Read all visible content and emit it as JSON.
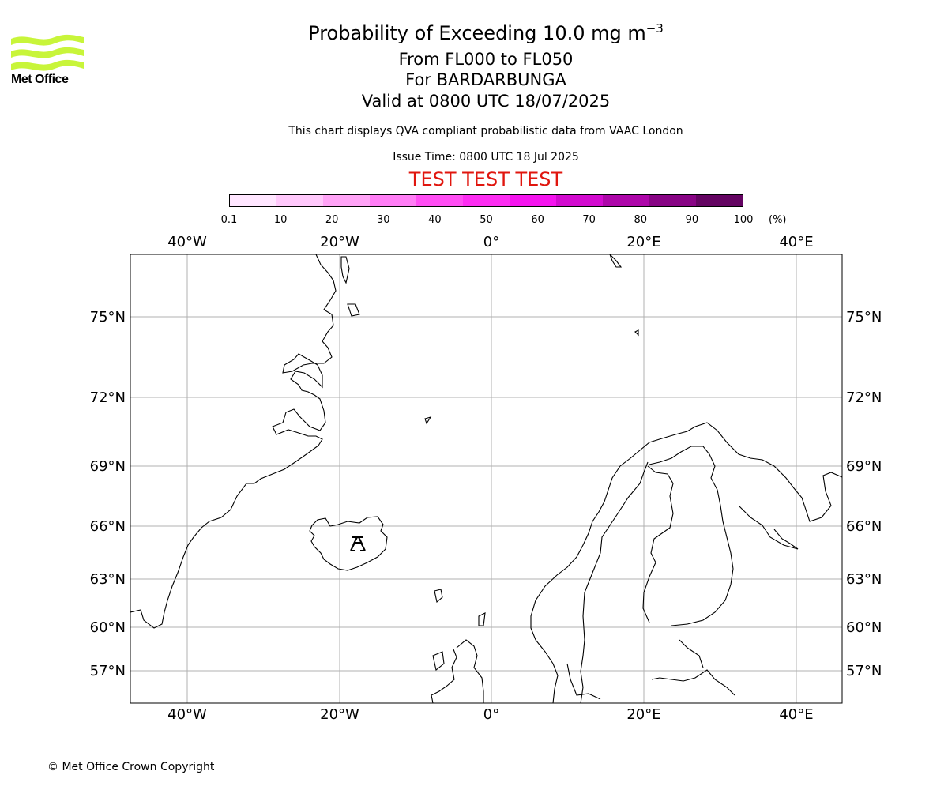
{
  "logo": {
    "text": "Met Office",
    "color": "#c8f53a"
  },
  "title": {
    "main": "Probability of Exceeding 10.0 mg m",
    "superscript": "−3",
    "levels": "From FL000 to FL050",
    "volcano": "For BARDARBUNGA",
    "valid": "Valid at 0800 UTC 18/07/2025"
  },
  "note": "This chart displays QVA compliant probabilistic data from VAAC London",
  "issue_time": "Issue Time: 0800 UTC 18 Jul 2025",
  "test_banner": "TEST TEST TEST",
  "colorbar": {
    "ticks": [
      "0.1",
      "10",
      "20",
      "30",
      "40",
      "50",
      "60",
      "70",
      "80",
      "90",
      "100"
    ],
    "unit": "(%)",
    "colors": [
      "#ffe6ff",
      "#ffc8fb",
      "#ffa3f6",
      "#ff7df5",
      "#ff4df3",
      "#fd2df2",
      "#f514ef",
      "#d20bcf",
      "#ad07a9",
      "#880485",
      "#640462"
    ]
  },
  "map": {
    "lon_labels": [
      "40°W",
      "20°W",
      "0°",
      "20°E",
      "40°E"
    ],
    "lon_values": [
      -40,
      -20,
      0,
      20,
      40
    ],
    "lat_labels": [
      "75°N",
      "72°N",
      "69°N",
      "66°N",
      "63°N",
      "60°N",
      "57°N"
    ],
    "lat_values": [
      75,
      72,
      69,
      66,
      63,
      60,
      57
    ],
    "volcano_icon": "volcano-icon"
  },
  "copyright": "© Met Office Crown Copyright"
}
